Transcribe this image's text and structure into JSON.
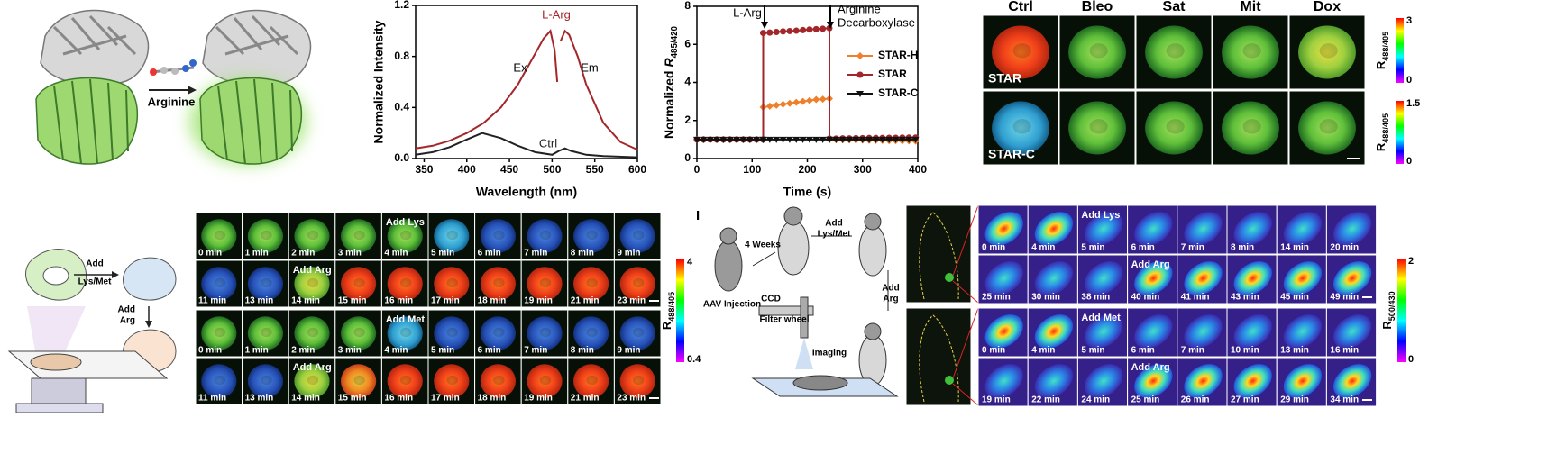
{
  "panel_a": {
    "arrow_label": "Arginine"
  },
  "chart_data": [
    {
      "type": "line",
      "x_label": "Wavelength (nm)",
      "y_label": "Normalized Intensity",
      "xlim": [
        340,
        600
      ],
      "ylim": [
        0,
        1.2
      ],
      "xticks": [
        350,
        400,
        450,
        500,
        550,
        600
      ],
      "yticks": [
        {
          "value": 0,
          "label": "0.0"
        },
        0.4,
        0.8,
        1.2
      ],
      "annotations": [
        "Ex",
        "Em"
      ],
      "series": [
        {
          "name": "L-Arg",
          "color": "#a3262a",
          "x": [
            340,
            360,
            380,
            400,
            420,
            440,
            460,
            480,
            490,
            498,
            503,
            506,
            508,
            510,
            515,
            520,
            530,
            540,
            560,
            580,
            600
          ],
          "values": [
            0.08,
            0.1,
            0.14,
            0.2,
            0.28,
            0.4,
            0.58,
            0.82,
            0.94,
            1.0,
            0.85,
            0.6,
            null,
            0.92,
            1.0,
            0.97,
            0.8,
            0.58,
            0.28,
            0.13,
            0.07
          ]
        },
        {
          "name": "Ctrl",
          "color": "#222222",
          "x": [
            340,
            360,
            380,
            400,
            418,
            440,
            460,
            480,
            500,
            508,
            515,
            522,
            540,
            560,
            600
          ],
          "values": [
            0.03,
            0.05,
            0.09,
            0.15,
            0.2,
            0.16,
            0.1,
            0.05,
            0.03,
            0.06,
            0.08,
            0.06,
            0.03,
            0.02,
            0.01
          ]
        }
      ]
    },
    {
      "type": "line",
      "x_label": "Time (s)",
      "y_label": "Normalized",
      "y_label_symbol": "R",
      "y_label_subscript": "485/420",
      "xlim": [
        0,
        400
      ],
      "ylim": [
        0,
        8
      ],
      "xticks": [
        0,
        100,
        200,
        300,
        400
      ],
      "yticks": [
        0,
        2,
        4,
        6,
        8
      ],
      "annotations": [
        "L-Arg",
        "Arginine",
        "Decarboxylase"
      ],
      "legend": "right",
      "x": [
        0,
        12,
        24,
        36,
        48,
        60,
        72,
        84,
        96,
        108,
        120,
        120,
        132,
        144,
        156,
        168,
        180,
        192,
        204,
        216,
        228,
        240,
        240,
        252,
        264,
        276,
        288,
        300,
        312,
        324,
        336,
        348,
        360,
        372,
        384,
        396
      ],
      "series": [
        {
          "name": "STAR-H",
          "color": "#f07f2a",
          "marker": "diamond",
          "values": [
            1.0,
            1.0,
            1.0,
            1.0,
            1.0,
            1.0,
            1.0,
            1.0,
            1.0,
            1.0,
            1.0,
            2.7,
            2.75,
            2.8,
            2.85,
            2.9,
            2.95,
            3.0,
            3.05,
            3.1,
            3.12,
            3.15,
            1.0,
            0.99,
            0.98,
            0.98,
            0.97,
            0.97,
            0.96,
            0.95,
            0.95,
            0.94,
            0.94,
            0.93,
            0.93,
            0.92
          ]
        },
        {
          "name": "STAR",
          "color": "#a3262a",
          "marker": "circle",
          "values": [
            1.0,
            1.0,
            1.0,
            1.0,
            1.0,
            1.0,
            1.0,
            1.0,
            1.0,
            1.0,
            1.0,
            6.6,
            6.62,
            6.65,
            6.68,
            6.7,
            6.72,
            6.75,
            6.78,
            6.8,
            6.82,
            6.85,
            1.05,
            1.05,
            1.06,
            1.06,
            1.07,
            1.07,
            1.08,
            1.08,
            1.08,
            1.09,
            1.09,
            1.1,
            1.1,
            1.1
          ]
        },
        {
          "name": "STAR-C",
          "color": "#111111",
          "marker": "triangle-down",
          "values": [
            1.0,
            1.0,
            1.0,
            1.0,
            1.0,
            1.0,
            1.0,
            1.0,
            1.0,
            1.0,
            1.0,
            1.0,
            1.0,
            1.0,
            1.0,
            1.0,
            1.0,
            1.0,
            1.0,
            1.0,
            1.0,
            1.0,
            1.0,
            1.0,
            1.0,
            1.0,
            1.0,
            1.0,
            1.0,
            1.0,
            1.0,
            1.0,
            1.0,
            1.0,
            1.0,
            1.0
          ]
        }
      ]
    }
  ],
  "panel_d": {
    "columns": [
      "Ctrl",
      "Bleo",
      "Sat",
      "Mit",
      "Dox"
    ],
    "rows": [
      "STAR",
      "STAR-C"
    ],
    "colorbars": [
      {
        "max": 3,
        "min": 0,
        "symbol": "R",
        "subscript": "488/405"
      },
      {
        "max": 1.5,
        "min": 0,
        "symbol": "R",
        "subscript": "488/405"
      }
    ]
  },
  "panel_e": {
    "schematic": {
      "add_1": [
        "Add",
        "Lys/Met"
      ],
      "add_2": [
        "Add",
        "Arg"
      ]
    },
    "rows": [
      {
        "event": "Add Lys",
        "times": [
          "0 min",
          "1 min",
          "2 min",
          "3 min",
          "4 min",
          "5 min",
          "6 min",
          "7 min",
          "8 min",
          "9 min"
        ]
      },
      {
        "event": "Add Arg",
        "times": [
          "11 min",
          "13 min",
          "14 min",
          "15 min",
          "16 min",
          "17 min",
          "18 min",
          "19 min",
          "21 min",
          "23 min"
        ]
      },
      {
        "event": "Add Met",
        "times": [
          "0 min",
          "1 min",
          "2 min",
          "3 min",
          "4 min",
          "5 min",
          "6 min",
          "7 min",
          "8 min",
          "9 min"
        ]
      },
      {
        "event": "Add Arg",
        "times": [
          "11 min",
          "13 min",
          "14 min",
          "15 min",
          "16 min",
          "17 min",
          "18 min",
          "19 min",
          "21 min",
          "23 min"
        ]
      }
    ],
    "colorbar": {
      "max": 4,
      "min": 0.4,
      "symbol": "R",
      "subscript": "488/405"
    }
  },
  "panel_i": {
    "label": "I",
    "schematic": {
      "weeks": "4 Weeks",
      "add_1": [
        "Add",
        "Lys/Met"
      ],
      "add_2": [
        "Add",
        "Arg"
      ],
      "injection": "AAV Injection",
      "ccd": "CCD",
      "filter": "Filter wheel",
      "imaging": "Imaging"
    },
    "rows": [
      {
        "event": "Add Lys",
        "times": [
          "0 min",
          "4 min",
          "5 min",
          "6 min",
          "7 min",
          "8 min",
          "14 min",
          "20 min"
        ]
      },
      {
        "event": "Add Arg",
        "times": [
          "25 min",
          "30 min",
          "38 min",
          "40 min",
          "41 min",
          "43 min",
          "45 min",
          "49 min"
        ]
      },
      {
        "event": "Add Met",
        "times": [
          "0 min",
          "4 min",
          "5 min",
          "6 min",
          "7 min",
          "10 min",
          "13 min",
          "16 min"
        ]
      },
      {
        "event": "Add Arg",
        "times": [
          "19 min",
          "22 min",
          "24 min",
          "25 min",
          "26 min",
          "27 min",
          "29 min",
          "34 min"
        ]
      }
    ],
    "colorbar": {
      "max": 2,
      "min": 0,
      "symbol": "R",
      "subscript": "500/430"
    }
  }
}
